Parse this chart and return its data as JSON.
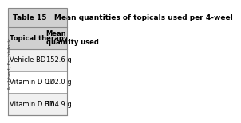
{
  "title": "Table 15   Mean quantities of topicals used per 4-weel",
  "columns": [
    "Topical therapy",
    "Mean\nquantity used"
  ],
  "rows": [
    [
      "Vehicle BD",
      "152.6 g"
    ],
    [
      "Vitamin D OD",
      "142.0 g"
    ],
    [
      "Vitamin D BD",
      "164.9 g"
    ]
  ],
  "header_bg": "#d0d0d0",
  "row_bg_alt": "#f0f0f0",
  "row_bg": "#ffffff",
  "title_bg": "#d0d0d0",
  "border_color": "#888888",
  "text_color": "#000000",
  "title_fontsize": 6.5,
  "body_fontsize": 6.0,
  "side_label": "Archived, for historic",
  "fig_bg": "#ffffff"
}
